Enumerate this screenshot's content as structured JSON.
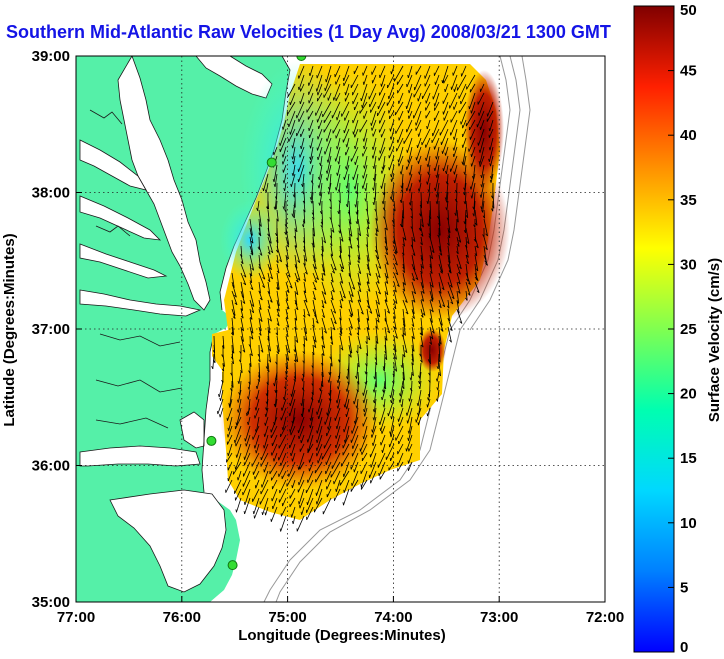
{
  "title": "Southern Mid-Atlantic Raw Velocities (1 Day Avg) 2008/03/21 1300 GMT",
  "x_axis": {
    "label": "Longitude (Degrees:Minutes)",
    "ticks": [
      "77:00",
      "76:00",
      "75:00",
      "74:00",
      "73:00",
      "72:00"
    ],
    "values": [
      -77,
      -76,
      -75,
      -74,
      -73,
      -72
    ],
    "range": [
      -77,
      -72
    ]
  },
  "y_axis": {
    "label": "Latitude (Degrees:Minutes)",
    "ticks": [
      "39:00",
      "38:00",
      "37:00",
      "36:00",
      "35:00"
    ],
    "values": [
      39,
      38,
      37,
      36,
      35
    ],
    "range": [
      35,
      39
    ]
  },
  "colorbar": {
    "label": "Surface Velocity (cm/s)",
    "ticks": [
      "0",
      "5",
      "10",
      "15",
      "20",
      "25",
      "30",
      "35",
      "40",
      "45",
      "50"
    ],
    "range": [
      0,
      50
    ],
    "colormap": "jet"
  },
  "grid": "dotted",
  "colors": {
    "land": "#55f0a8",
    "title": "#1414e6",
    "station": "#33dd33"
  },
  "stations": [
    {
      "lon": -74.87,
      "lat": 39.0
    },
    {
      "lon": -75.15,
      "lat": 38.22
    },
    {
      "lon": -75.72,
      "lat": 36.18
    },
    {
      "lon": -75.52,
      "lat": 35.27
    }
  ]
}
